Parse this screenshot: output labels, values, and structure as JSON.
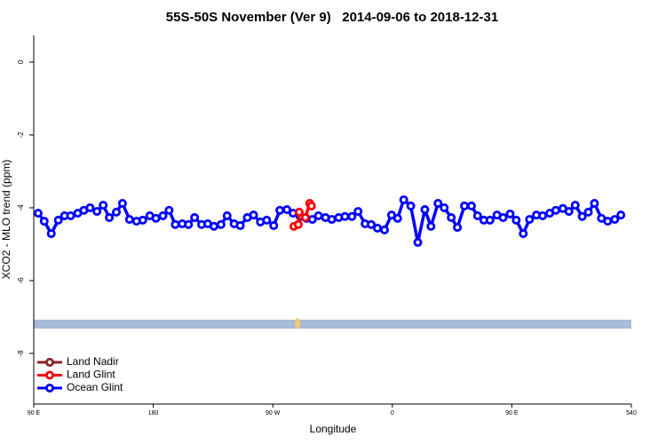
{
  "chart_data": {
    "type": "line",
    "title": "55S-50S November (Ver 9)   2014-09-06 to 2018-12-31",
    "x_label": "Longitude",
    "y_label": "XCO2 - MLO trend (ppm)",
    "xlim": [
      90,
      540
    ],
    "xticks": [
      {
        "value": 90,
        "label": "90 E"
      },
      180,
      {
        "value": 270,
        "label": "90 W"
      },
      {
        "value": 360,
        "label": "0"
      },
      {
        "value": 450,
        "label": "90 E"
      },
      540
    ],
    "ylim": [
      -9.39,
      0.73
    ],
    "yticks": [
      0,
      -2,
      -4,
      -6,
      -8
    ],
    "legend": "bottom-left",
    "series": [
      {
        "name": "Land Nadir",
        "color": "#8b2323",
        "x": [],
        "values": []
      },
      {
        "name": "Land Glint",
        "color": "#ff0000",
        "x": [
          285.9,
          289.2,
          289.9,
          294.5,
          297.8,
          299.1
        ],
        "values": [
          -4.51,
          -4.46,
          -4.12,
          -4.27,
          -3.88,
          -3.95
        ]
      },
      {
        "name": "Ocean Glint",
        "color": "#0000ff",
        "x": [
          93.3,
          97.9,
          103.2,
          108.5,
          113.2,
          117.8,
          123.1,
          127.7,
          132.4,
          137.6,
          142.3,
          146.9,
          152.2,
          156.8,
          162.1,
          167.4,
          172.1,
          177.4,
          182.0,
          187.3,
          191.9,
          196.6,
          201.8,
          206.5,
          211.1,
          216.4,
          221.0,
          225.7,
          231.0,
          235.6,
          240.9,
          245.5,
          250.8,
          255.5,
          260.7,
          265.4,
          270.7,
          275.3,
          280.6,
          285.2,
          290.5,
          295.2,
          299.8,
          304.4,
          309.7,
          314.4,
          319.6,
          324.3,
          329.6,
          334.2,
          339.5,
          344.1,
          348.8,
          354.1,
          359.4,
          364.0,
          368.6,
          373.9,
          379.2,
          384.5,
          389.1,
          394.4,
          399.1,
          404.4,
          409.0,
          414.3,
          419.6,
          424.2,
          428.9,
          433.5,
          438.8,
          443.4,
          448.7,
          453.3,
          458.6,
          463.3,
          468.5,
          473.2,
          478.5,
          483.1,
          488.4,
          493.0,
          497.7,
          503.0,
          507.6,
          512.2,
          517.5,
          522.2,
          527.5,
          532.1
        ],
        "values": [
          -4.15,
          -4.37,
          -4.71,
          -4.34,
          -4.22,
          -4.22,
          -4.15,
          -4.07,
          -4.0,
          -4.1,
          -3.93,
          -4.27,
          -4.12,
          -3.88,
          -4.32,
          -4.37,
          -4.34,
          -4.22,
          -4.29,
          -4.22,
          -4.07,
          -4.46,
          -4.44,
          -4.46,
          -4.27,
          -4.46,
          -4.44,
          -4.51,
          -4.46,
          -4.22,
          -4.44,
          -4.49,
          -4.27,
          -4.2,
          -4.39,
          -4.34,
          -4.49,
          -4.07,
          -4.05,
          -4.15,
          -4.24,
          -4.29,
          -4.32,
          -4.22,
          -4.27,
          -4.32,
          -4.27,
          -4.24,
          -4.24,
          -4.1,
          -4.44,
          -4.46,
          -4.56,
          -4.61,
          -4.2,
          -4.29,
          -3.78,
          -3.95,
          -4.95,
          -4.05,
          -4.51,
          -3.88,
          -4.0,
          -4.27,
          -4.54,
          -3.95,
          -3.95,
          -4.22,
          -4.34,
          -4.34,
          -4.2,
          -4.27,
          -4.17,
          -4.34,
          -4.71,
          -4.32,
          -4.2,
          -4.22,
          -4.15,
          -4.07,
          -4.02,
          -4.1,
          -3.93,
          -4.24,
          -4.12,
          -3.88,
          -4.29,
          -4.37,
          -4.32,
          -4.2
        ]
      }
    ]
  }
}
